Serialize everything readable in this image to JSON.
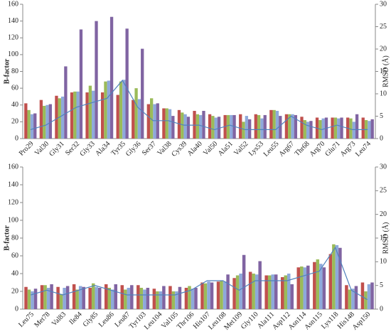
{
  "chart_data": [
    {
      "type": "bar",
      "ylabel": "B-factor",
      "y2label": "RMSD (Å)",
      "categories": [
        "Pro29",
        "Val30",
        "Gly31",
        "Ser32",
        "Gly33",
        "Ala34",
        "Tyr35",
        "Gly36",
        "Ser37",
        "Val38",
        "Cys39",
        "Ala40",
        "Val50",
        "Ala51",
        "Val52",
        "Lys53",
        "Leu55",
        "Arg67",
        "Thr68",
        "Arg70",
        "Glu71",
        "Arg73",
        "Leu74"
      ],
      "series": [
        {
          "color": "#c0504d",
          "values": [
            42,
            46,
            51,
            55,
            55,
            55,
            52,
            46,
            41,
            36,
            34,
            33,
            29,
            28,
            29,
            29,
            34,
            29,
            26,
            25,
            25,
            25,
            25
          ]
        },
        {
          "color": "#9bbb59",
          "values": [
            34,
            39,
            48,
            56,
            63,
            68,
            68,
            60,
            48,
            36,
            31,
            29,
            27,
            28,
            20,
            28,
            34,
            29,
            22,
            22,
            25,
            24,
            22
          ]
        },
        {
          "color": "#8ea9db",
          "values": [
            29,
            40,
            50,
            56,
            57,
            69,
            70,
            47,
            41,
            35,
            29,
            28,
            25,
            28,
            27,
            24,
            33,
            29,
            20,
            24,
            24,
            20,
            21
          ]
        },
        {
          "color": "#8064a2",
          "values": [
            30,
            41,
            86,
            130,
            140,
            145,
            131,
            107,
            42,
            27,
            26,
            33,
            26,
            28,
            23,
            28,
            27,
            28,
            21,
            25,
            25,
            29,
            23
          ]
        },
        {
          "color": "#4f81bd",
          "axis": "y2",
          "values": [
            2,
            3,
            5,
            7,
            8,
            9,
            13,
            7,
            4,
            4,
            3,
            3,
            2,
            3,
            2,
            2,
            2,
            5,
            3,
            2,
            3,
            2,
            2
          ]
        }
      ],
      "ylim": [
        0,
        160
      ],
      "yticks": [
        0,
        20,
        40,
        60,
        80,
        100,
        120,
        140,
        160
      ],
      "y2lim": [
        0,
        30
      ],
      "y2ticks": [
        0,
        5,
        10,
        15,
        20,
        25,
        30
      ]
    },
    {
      "type": "bar",
      "ylabel": "B-factor",
      "y2label": "RMSD (Å)",
      "categories": [
        "Leu75",
        "Met78",
        "Val83",
        "Ile84",
        "Gly85",
        "Leu86",
        "Leu87",
        "Tyr103",
        "Leu104",
        "Val105",
        "Thr106",
        "His107",
        "Leu108",
        "Met109",
        "Gly110",
        "Ala111",
        "Asp112",
        "Asn114",
        "Asn115",
        "Lys118",
        "His148",
        "Asp150"
      ],
      "series": [
        {
          "color": "#c0504d",
          "values": [
            25,
            27,
            25,
            28,
            24,
            28,
            27,
            27,
            23,
            26,
            24,
            30,
            31,
            35,
            42,
            38,
            36,
            47,
            53,
            62,
            27,
            30
          ]
        },
        {
          "color": "#9bbb59",
          "values": [
            22,
            27,
            17,
            22,
            29,
            24,
            22,
            24,
            20,
            20,
            26,
            29,
            32,
            38,
            40,
            38,
            38,
            48,
            56,
            73,
            22,
            20
          ]
        },
        {
          "color": "#8ea9db",
          "values": [
            20,
            24,
            24,
            26,
            25,
            22,
            24,
            22,
            20,
            20,
            23,
            31,
            31,
            40,
            39,
            39,
            40,
            47,
            51,
            72,
            23,
            28
          ]
        },
        {
          "color": "#8064a2",
          "values": [
            23,
            28,
            26,
            25,
            24,
            28,
            27,
            24,
            26,
            25,
            24,
            30,
            39,
            61,
            54,
            39,
            28,
            49,
            47,
            69,
            26,
            30
          ]
        },
        {
          "color": "#4f81bd",
          "axis": "y2",
          "values": [
            3,
            4,
            3,
            4,
            5,
            4,
            3,
            3,
            3,
            3,
            4,
            6,
            6,
            4,
            6,
            6,
            6,
            7,
            8,
            13,
            4,
            2
          ]
        }
      ],
      "ylim": [
        0,
        160
      ],
      "yticks": [
        0,
        20,
        40,
        60,
        80,
        100,
        120,
        140,
        160
      ],
      "y2lim": [
        0,
        30
      ],
      "y2ticks": [
        0,
        5,
        10,
        15,
        20,
        25,
        30
      ]
    }
  ]
}
